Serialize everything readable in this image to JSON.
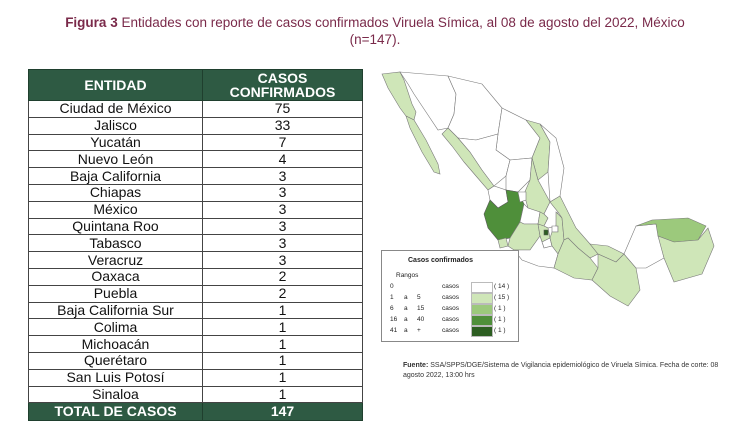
{
  "caption": {
    "fig_label": "Figura 3",
    "line1": " Entidades con reporte de casos confirmados Viruela Símica, al 08 de agosto del 2022, México",
    "line2": "(n=147)."
  },
  "table": {
    "header_entidad": "ENTIDAD",
    "header_casos_1": "CASOS",
    "header_casos_2": "CONFIRMADOS",
    "rows": [
      {
        "entidad": "Ciudad de México",
        "casos": "75"
      },
      {
        "entidad": "Jalisco",
        "casos": "33"
      },
      {
        "entidad": "Yucatán",
        "casos": "7"
      },
      {
        "entidad": "Nuevo León",
        "casos": "4"
      },
      {
        "entidad": "Baja California",
        "casos": "3"
      },
      {
        "entidad": "Chiapas",
        "casos": "3"
      },
      {
        "entidad": "México",
        "casos": "3"
      },
      {
        "entidad": "Quintana Roo",
        "casos": "3"
      },
      {
        "entidad": "Tabasco",
        "casos": "3"
      },
      {
        "entidad": "Veracruz",
        "casos": "3"
      },
      {
        "entidad": "Oaxaca",
        "casos": "2"
      },
      {
        "entidad": "Puebla",
        "casos": "2"
      },
      {
        "entidad": "Baja California Sur",
        "casos": "1"
      },
      {
        "entidad": "Colima",
        "casos": "1"
      },
      {
        "entidad": "Michoacán",
        "casos": "1"
      },
      {
        "entidad": "Querétaro",
        "casos": "1"
      },
      {
        "entidad": "San Luis Potosí",
        "casos": "1"
      },
      {
        "entidad": "Sinaloa",
        "casos": "1"
      }
    ],
    "total_label": "TOTAL DE CASOS",
    "total_value": "147"
  },
  "legend": {
    "title": "Casos confirmados",
    "ranges_label": "Rangos",
    "rows": [
      {
        "from": "0",
        "a": "",
        "to": "",
        "unit": "casos",
        "count": "( 14 )",
        "color": "#ffffff"
      },
      {
        "from": "1",
        "a": "a",
        "to": "5",
        "unit": "casos",
        "count": "( 15 )",
        "color": "#cfe6b8"
      },
      {
        "from": "6",
        "a": "a",
        "to": "15",
        "unit": "casos",
        "count": "( 1 )",
        "color": "#9cc97c"
      },
      {
        "from": "16",
        "a": "a",
        "to": "40",
        "unit": "casos",
        "count": "( 1 )",
        "color": "#4f8f3a"
      },
      {
        "from": "41",
        "a": "a",
        "to": "+",
        "unit": "casos",
        "count": "( 1 )",
        "color": "#2d5e22"
      }
    ]
  },
  "source": {
    "label": "Fuente:",
    "text": " SSA/SPPS/DGE/Sistema de Vigilancia epidemiológico de Viruela Símica. Fecha de corte: 08 agosto 2022, 13:00 hrs"
  },
  "colors": {
    "header_green": "#2e5a43",
    "caption_color": "#7a2a4a",
    "map_none": "#ffffff",
    "map_low": "#cfe6b8",
    "map_mid": "#9cc97c",
    "map_high": "#4f8f3a",
    "map_top": "#2d5e22"
  }
}
